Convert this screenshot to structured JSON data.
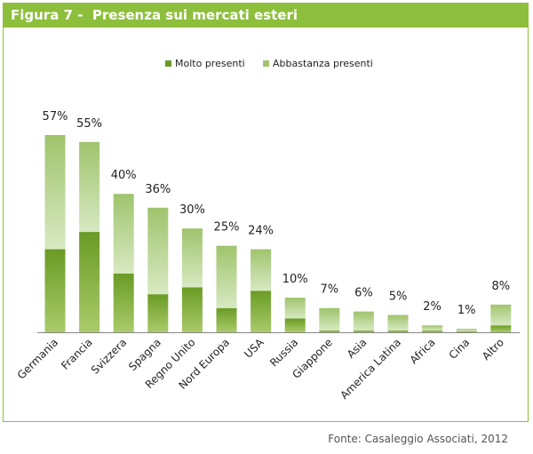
{
  "figure": {
    "title": "Figura 7 -  Presenza sui mercati esteri",
    "source": "Fonte: Casaleggio Associati, 2012"
  },
  "colors": {
    "header": "#8dbf3c",
    "molto_top": "#6a9b25",
    "molto_bottom": "#aacb6a",
    "abbastanza_top": "#9fc46d",
    "abbastanza_bottom": "#d8e9c2",
    "axis": "#888888"
  },
  "chart_data": {
    "type": "bar",
    "stacked": true,
    "categories": [
      "Germania",
      "Francia",
      "Svizzera",
      "Spagna",
      "Regno Unito",
      "Nord Europa",
      "USA",
      "Russia",
      "Giappone",
      "Asia",
      "America Latina",
      "Africa",
      "Cina",
      "Altro"
    ],
    "series": [
      {
        "name": "Molto presenti",
        "values": [
          24,
          29,
          17,
          11,
          13,
          7,
          12,
          4,
          0.5,
          0.5,
          0.5,
          0.5,
          0.3,
          2
        ]
      },
      {
        "name": "Abbastanza presenti",
        "values": [
          33,
          26,
          23,
          25,
          17,
          18,
          12,
          6,
          6.5,
          5.5,
          4.5,
          1.5,
          0.7,
          6
        ]
      }
    ],
    "total_labels": [
      "57%",
      "55%",
      "40%",
      "36%",
      "30%",
      "25%",
      "24%",
      "10%",
      "7%",
      "6%",
      "5%",
      "2%",
      "1%",
      "8%"
    ],
    "ylim": [
      0,
      60
    ],
    "legend_position": "top-center",
    "grid": false
  }
}
